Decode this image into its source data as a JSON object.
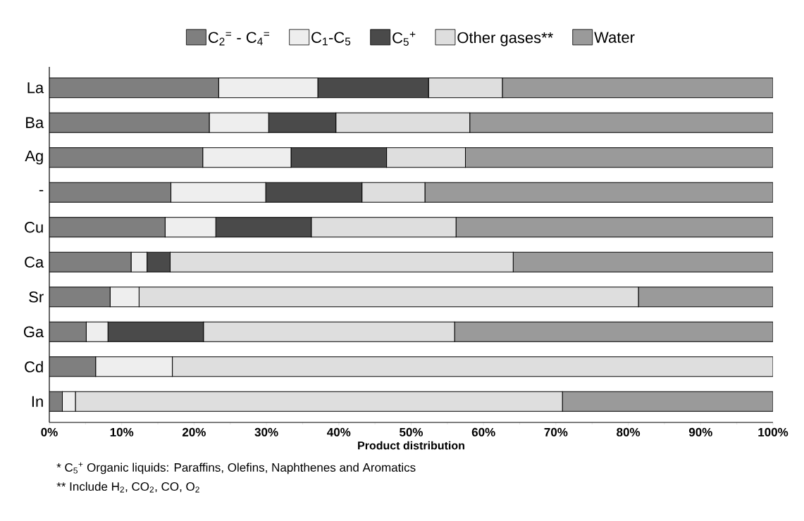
{
  "chart_data": {
    "type": "bar",
    "orientation": "horizontal",
    "stacked": true,
    "categories": [
      "La",
      "Ba",
      "Ag",
      "-",
      "Cu",
      "Ca",
      "Sr",
      "Ga",
      "Cd",
      "In"
    ],
    "series": [
      {
        "name": "C$_{2}$$^{=}$ - C$_{4}$$^{=}$",
        "color": "#7f7f7f",
        "values": [
          23.4,
          22.1,
          21.2,
          16.8,
          16.0,
          11.3,
          8.4,
          5.1,
          6.4,
          1.8
        ]
      },
      {
        "name": "C$_{1}$-C$_{5}$",
        "color": "#eeeeee",
        "values": [
          13.7,
          8.2,
          12.2,
          13.1,
          7.0,
          2.2,
          4.0,
          3.0,
          10.6,
          1.8
        ]
      },
      {
        "name": "C$_{5}$$^{+}$",
        "color": "#4a4a4a",
        "values": [
          15.3,
          9.3,
          13.2,
          13.3,
          13.2,
          3.2,
          0,
          13.2,
          0,
          0
        ]
      },
      {
        "name": "Other gases**",
        "color": "#dedede",
        "values": [
          10.2,
          18.5,
          10.9,
          8.7,
          20.0,
          47.4,
          69.0,
          34.7,
          83.0,
          67.3
        ]
      },
      {
        "name": "Water",
        "color": "#9a9a9a",
        "values": [
          37.4,
          41.9,
          42.5,
          48.1,
          43.8,
          35.9,
          18.6,
          44.0,
          0,
          29.1
        ]
      }
    ],
    "xlabel": "Product distribution",
    "xlim": [
      0,
      100
    ],
    "xticks": [
      {
        "value": 0,
        "label": "0%"
      },
      {
        "value": 10,
        "label": "10%"
      },
      {
        "value": 20,
        "label": "20%"
      },
      {
        "value": 30,
        "label": "30%"
      },
      {
        "value": 40,
        "label": "40%"
      },
      {
        "value": 50,
        "label": "50%"
      },
      {
        "value": 60,
        "label": "60%"
      },
      {
        "value": 70,
        "label": "70%"
      },
      {
        "value": 80,
        "label": "80%"
      },
      {
        "value": 90,
        "label": "90%"
      },
      {
        "value": 100,
        "label": "100%"
      }
    ],
    "legend": "top",
    "annotations": [
      "* C$_{5}$$^{+}$ Organic liquids: Paraffins, Olefins, Naphthenes and Aromatics",
      "** Include H$_{2}$, CO$_{2}$, CO, O$_{2}$"
    ]
  }
}
